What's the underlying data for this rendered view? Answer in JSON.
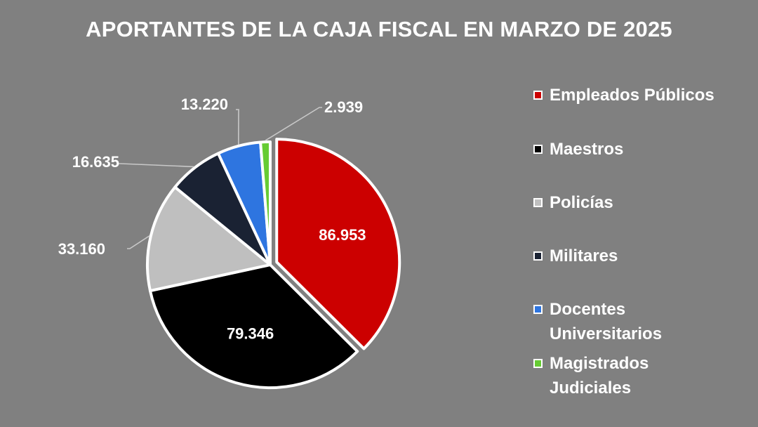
{
  "chart_data": {
    "type": "pie",
    "title": "APORTANTES DE LA CAJA FISCAL EN MARZO DE 2025",
    "slices": [
      {
        "name": "Empleados Públicos",
        "value": 86953,
        "label": "86.953",
        "color": "#cc0000",
        "label_position": "inside"
      },
      {
        "name": "Maestros",
        "value": 79346,
        "label": "79.346",
        "color": "#000000",
        "label_position": "inside"
      },
      {
        "name": "Policías",
        "value": 33160,
        "label": "33.160",
        "color": "#bfbfbf",
        "label_position": "outside"
      },
      {
        "name": "Militares",
        "value": 16635,
        "label": "16.635",
        "color": "#1a2233",
        "label_position": "outside"
      },
      {
        "name": "Docentes Universitarios",
        "value": 13220,
        "label": "13.220",
        "color": "#2e75e0",
        "label_position": "outside"
      },
      {
        "name": "Magistrados Judiciales",
        "value": 2939,
        "label": "2.939",
        "color": "#66cc33",
        "label_position": "outside"
      }
    ],
    "legend": {
      "placement": "right",
      "entries": [
        {
          "text": "Empleados Públicos",
          "color": "#cc0000"
        },
        {
          "text": "Maestros",
          "color": "#000000"
        },
        {
          "text": "Policías",
          "color": "#bfbfbf"
        },
        {
          "text": "Militares",
          "color": "#1a2233"
        },
        {
          "text": "Docentes\nUniversitarios",
          "color": "#2e75e0"
        },
        {
          "text": "Magistrados\nJudiciales",
          "color": "#66cc33"
        }
      ]
    }
  }
}
